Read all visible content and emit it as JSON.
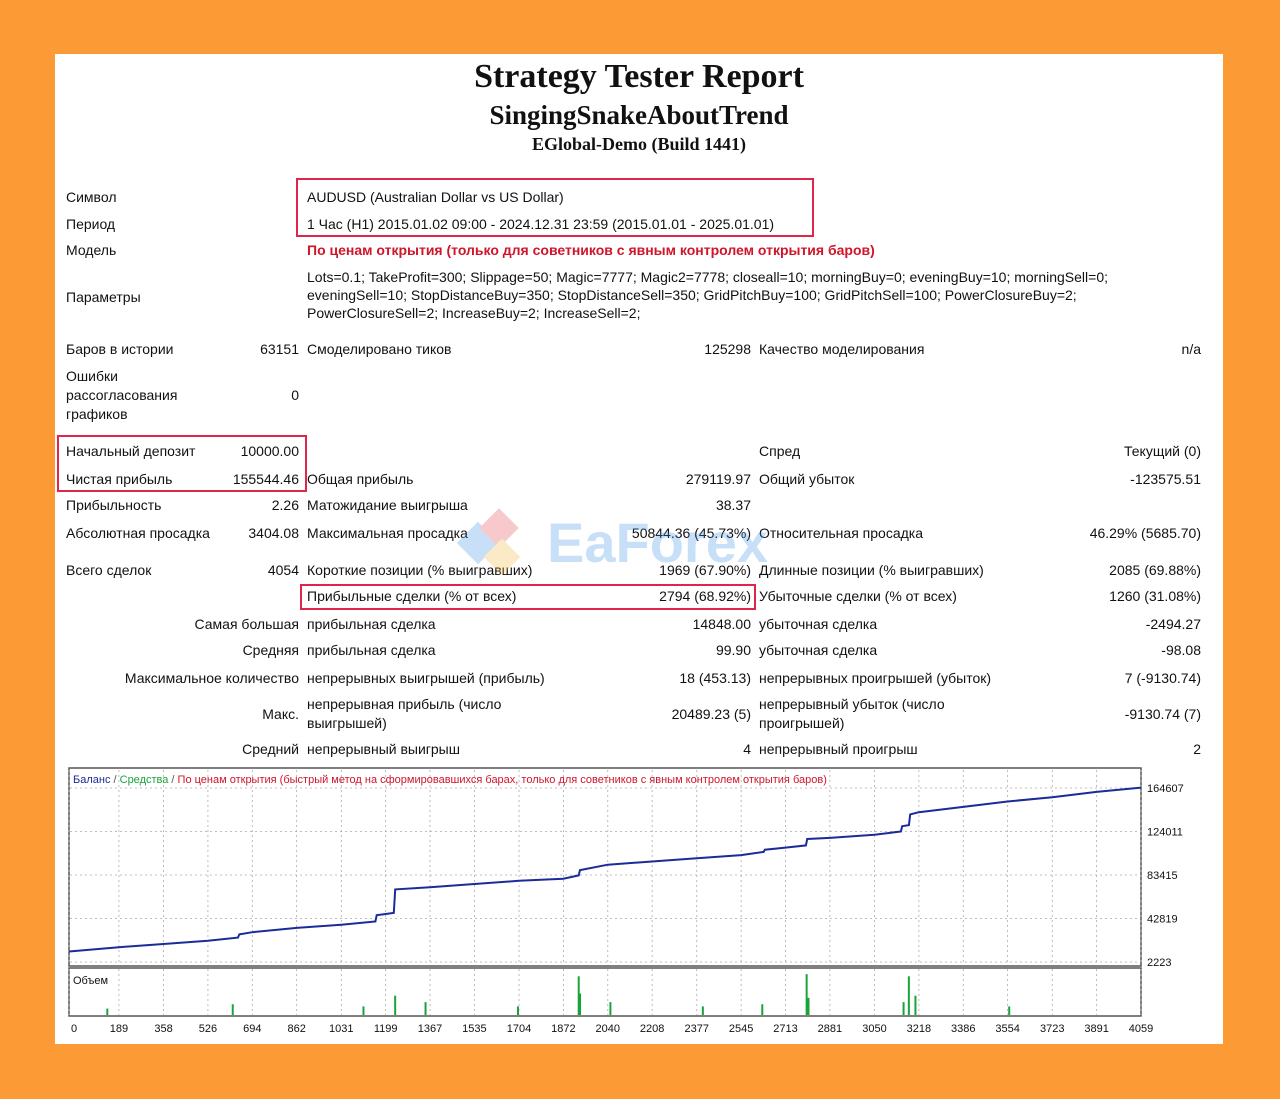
{
  "report": {
    "title": "Strategy Tester Report",
    "ea_name": "SingingSnakeAboutTrend",
    "server": "EGlobal-Demo (Build 1441)"
  },
  "info": {
    "symbol_label": "Символ",
    "symbol_value": "AUDUSD (Australian Dollar vs US Dollar)",
    "period_label": "Период",
    "period_value": "1 Час (H1) 2015.01.02 09:00 - 2024.12.31 23:59 (2015.01.01 - 2025.01.01)",
    "model_label": "Модель",
    "model_value": "По ценам открытия (только для советников с явным контролем открытия баров)",
    "params_label": "Параметры",
    "params_value": "Lots=0.1; TakeProfit=300; Slippage=50; Magic=7777; Magic2=7778; closeall=10; morningBuy=0; eveningBuy=10; morningSell=0; eveningSell=10; StopDistanceBuy=350; StopDistanceSell=350; GridPitchBuy=100; GridPitchSell=100; PowerClosureBuy=2; PowerClosureSell=2; IncreaseBuy=2; IncreaseSell=2;"
  },
  "stats": {
    "bars_label": "Баров в истории",
    "bars_value": "63151",
    "ticks_label": "Смоделировано тиков",
    "ticks_value": "125298",
    "quality_label": "Качество моделирования",
    "quality_value": "n/a",
    "errors_label_1": "Ошибки",
    "errors_label_2": "рассогласования",
    "errors_label_3": "графиков",
    "errors_value": "0",
    "deposit_label": "Начальный депозит",
    "deposit_value": "10000.00",
    "spread_label": "Спред",
    "spread_value": "Текущий (0)",
    "net_label": "Чистая прибыль",
    "net_value": "155544.46",
    "gross_profit_label": "Общая прибыль",
    "gross_profit_value": "279119.97",
    "gross_loss_label": "Общий убыток",
    "gross_loss_value": "-123575.51",
    "pf_label": "Прибыльность",
    "pf_value": "2.26",
    "expected_label": "Матожидание выигрыша",
    "expected_value": "38.37",
    "abs_dd_label": "Абсолютная просадка",
    "abs_dd_value": "3404.08",
    "max_dd_label": "Максимальная просадка",
    "max_dd_value": "50844.36 (45.73%)",
    "rel_dd_label": "Относительная просадка",
    "rel_dd_value": "46.29% (5685.70)",
    "total_label": "Всего сделок",
    "total_value": "4054",
    "short_label": "Короткие позиции (% выигравших)",
    "short_value": "1969 (67.90%)",
    "long_label": "Длинные позиции (% выигравших)",
    "long_value": "2085 (69.88%)",
    "profit_trades_label": "Прибыльные сделки (% от всех)",
    "profit_trades_value": "2794 (68.92%)",
    "loss_trades_label": "Убыточные сделки (% от всех)",
    "loss_trades_value": "1260 (31.08%)",
    "largest_label": "Самая большая",
    "largest_profit_label": "прибыльная сделка",
    "largest_profit_value": "14848.00",
    "largest_loss_label": "убыточная сделка",
    "largest_loss_value": "-2494.27",
    "average_label": "Средняя",
    "average_profit_label": "прибыльная сделка",
    "average_profit_value": "99.90",
    "average_loss_label": "убыточная сделка",
    "average_loss_value": "-98.08",
    "maxcount_label": "Максимальное количество",
    "maxcount_wins_label": "непрерывных выигрышей (прибыль)",
    "maxcount_wins_value": "18 (453.13)",
    "maxcount_losses_label": "непрерывных проигрышей (убыток)",
    "maxcount_losses_value": "7 (-9130.74)",
    "max_label": "Макс.",
    "max_profit_label_1": "непрерывная прибыль (число",
    "max_profit_label_2": "выигрышей)",
    "max_profit_value": "20489.23 (5)",
    "max_loss_label_1": "непрерывный убыток (число",
    "max_loss_label_2": "проигрышей)",
    "max_loss_value": "-9130.74 (7)",
    "avg_cons_label": "Средний",
    "avg_cons_wins_label": "непрерывный выигрыш",
    "avg_cons_wins_value": "4",
    "avg_cons_losses_label": "непрерывный проигрыш",
    "avg_cons_losses_value": "2"
  },
  "watermark": "EaForex",
  "chart_data": {
    "type": "line",
    "legend": {
      "balance": "Баланс",
      "equity": "Средства",
      "model": "По ценам открытия (быстрый метод на сформировавшихся барах, только для советников с явным контролем открытия баров)"
    },
    "volume_label": "Объем",
    "y_ticks": [
      2223,
      42819,
      83415,
      124011,
      164607
    ],
    "y_tick_labels": [
      "2223",
      "42819",
      "83415",
      "124011",
      "164607"
    ],
    "x_ticks": [
      0,
      189,
      358,
      526,
      694,
      862,
      1031,
      1199,
      1367,
      1535,
      1704,
      1872,
      2040,
      2208,
      2377,
      2545,
      2713,
      2881,
      3050,
      3218,
      3386,
      3554,
      3723,
      3891,
      4059
    ],
    "x_tick_labels": [
      "0",
      "189",
      "358",
      "526",
      "694",
      "862",
      "1031",
      "1199",
      "1367",
      "1535",
      "1704",
      "1872",
      "2040",
      "2208",
      "2377",
      "2545",
      "2713",
      "2881",
      "3050",
      "3218",
      "3386",
      "3554",
      "3723",
      "3891",
      "4059"
    ],
    "xlim": [
      0,
      4059
    ],
    "ylim": [
      2223,
      164607
    ],
    "balance_series": {
      "x": [
        0,
        189,
        358,
        526,
        640,
        645,
        694,
        862,
        1031,
        1160,
        1165,
        1199,
        1230,
        1235,
        1367,
        1535,
        1704,
        1872,
        1930,
        1935,
        2040,
        2208,
        2377,
        2545,
        2630,
        2635,
        2713,
        2790,
        2795,
        2881,
        3050,
        3150,
        3155,
        3180,
        3185,
        3218,
        3386,
        3554,
        3723,
        3891,
        4059
      ],
      "y": [
        12000,
        16000,
        19000,
        22000,
        25000,
        28000,
        30000,
        34000,
        37000,
        40000,
        46000,
        47000,
        48000,
        70000,
        72000,
        75000,
        78000,
        80000,
        83000,
        88000,
        93000,
        96000,
        99000,
        102000,
        105000,
        107000,
        109000,
        111000,
        117000,
        118000,
        121000,
        124000,
        129000,
        130000,
        140000,
        142000,
        147000,
        152000,
        156000,
        161000,
        165000
      ]
    },
    "volume_spikes": {
      "x": [
        145,
        620,
        1115,
        1235,
        1350,
        1700,
        1930,
        1935,
        2050,
        2400,
        2625,
        2793,
        2800,
        3160,
        3180,
        3205,
        3560
      ],
      "h": [
        0.15,
        0.25,
        0.2,
        0.45,
        0.3,
        0.2,
        0.9,
        0.5,
        0.3,
        0.2,
        0.25,
        0.95,
        0.4,
        0.3,
        0.9,
        0.45,
        0.2
      ]
    }
  }
}
